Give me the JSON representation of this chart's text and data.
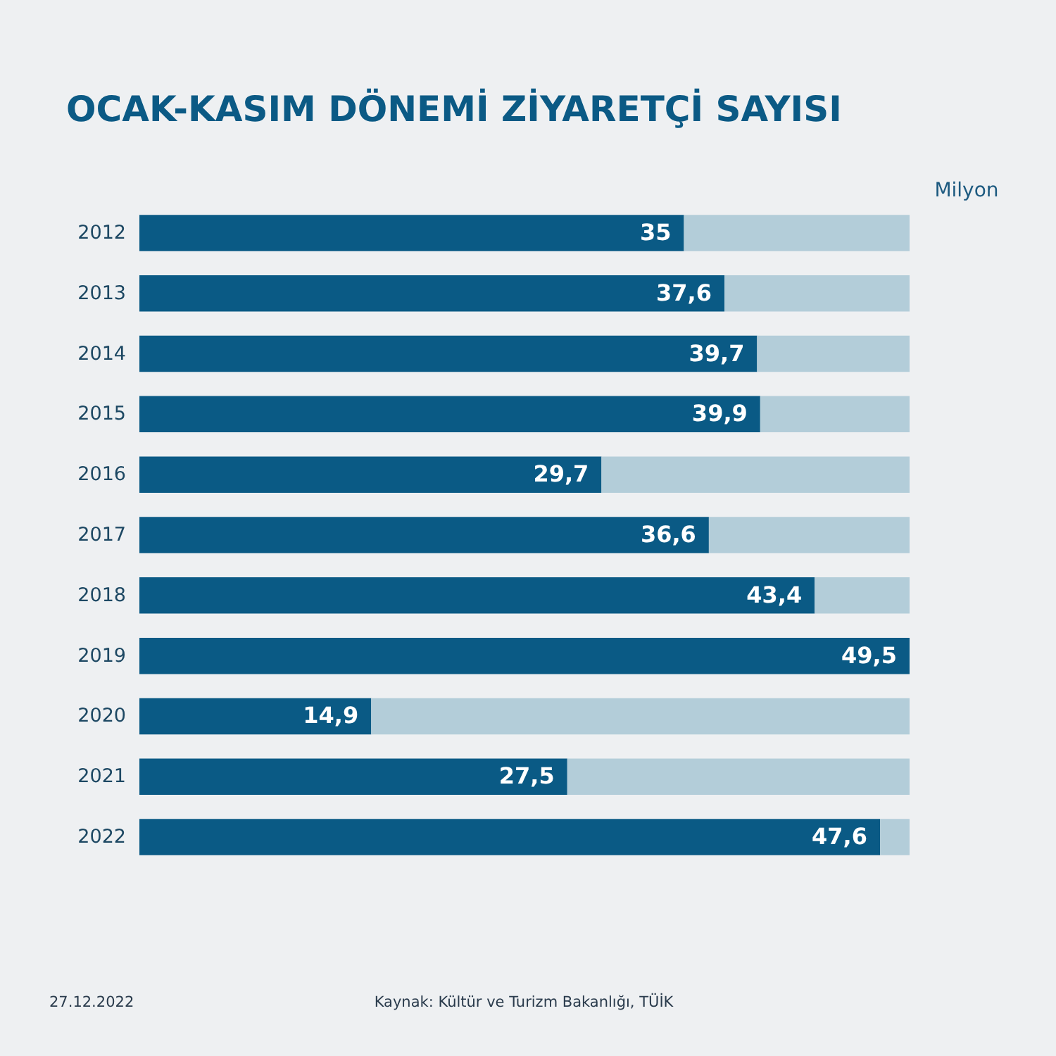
{
  "chart_data": {
    "type": "bar",
    "orientation": "horizontal",
    "stacked": true,
    "title": "OCAK-KASIM DÖNEMİ ZİYARETÇİ SAYISI",
    "xlabel": "Milyon",
    "categories": [
      "2012",
      "2013",
      "2014",
      "2015",
      "2016",
      "2017",
      "2018",
      "2019",
      "2020",
      "2021",
      "2022"
    ],
    "series": [
      {
        "color": "#0a5a85",
        "values": [
          35,
          37.6,
          39.7,
          39.9,
          29.7,
          36.6,
          43.4,
          49.5,
          14.9,
          27.5,
          47.6
        ],
        "value_labels": [
          "35",
          "37,6",
          "39,7",
          "39,9",
          "29,7",
          "36,6",
          "43,4",
          "49,5",
          "14,9",
          "27,5",
          "47,6"
        ]
      },
      {
        "color": "#b3cdd9",
        "values": [
          14.5,
          11.9,
          9.8,
          9.6,
          19.8,
          12.9,
          6.1,
          null,
          34.6,
          22,
          1.9
        ]
      }
    ],
    "xlim": [
      0,
      49.5
    ],
    "tick_labels": "y",
    "annotations": [
      "27.12.2022",
      "Kaynak: Kültür ve Turizm Bakanlığı, TÜİK"
    ]
  }
}
